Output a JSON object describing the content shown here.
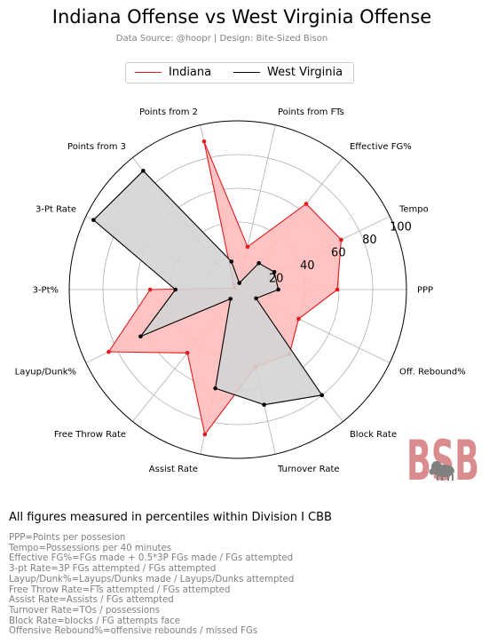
{
  "chart_data": {
    "type": "radar",
    "title": "Indiana Offense vs West Virginia Offense",
    "subtitle": "Data Source: @hoopr | Design: Bite-Sized Bison",
    "categories": [
      "PPP",
      "Tempo",
      "Effective FG%",
      "Points from FTs",
      "Points from 2",
      "Points from 3",
      "3-Pt Rate",
      "3-Pt%",
      "Layup/Dunk%",
      "Free Throw Rate",
      "Assist Rate",
      "Turnover Rate",
      "Block Rate",
      "Off. Rebound%"
    ],
    "radial_ticks": [
      "20",
      "40",
      "60",
      "80",
      "100"
    ],
    "rlim": [
      0,
      100
    ],
    "grid": true,
    "legend_position": "top-center",
    "series": [
      {
        "name": "Indiana",
        "color": "#e31a1c",
        "fill": "#ffbcbc",
        "values": [
          59,
          68,
          65,
          26,
          90,
          4,
          2,
          52,
          85,
          48,
          88,
          47,
          49,
          40
        ]
      },
      {
        "name": "West Virginia",
        "color": "#000000",
        "fill": "#d4d4d4",
        "values": [
          24,
          24,
          20,
          4,
          17,
          90,
          95,
          37,
          64,
          7,
          60,
          70,
          80,
          12
        ]
      }
    ]
  },
  "logo": {
    "text": "BSB",
    "color": "#d98b8d",
    "bison_color": "#808080"
  },
  "notes": {
    "heading": "All figures measured in percentiles within Division I CBB",
    "definitions": [
      "PPP=Points per possesion",
      "Tempo=Possessions per 40 minutes",
      "Effective FG%=FGs made + 0.5*3P FGs made / FGs attempted",
      "3-pt Rate=3P FGs attempted / FGs attempted",
      "Layup/Dunk%=Layups/Dunks made / Layups/Dunks attempted",
      "Free Throw Rate=FTs attempted / FGs attempted",
      "Assist Rate=Assists / FGs attempted",
      "Turnover Rate=TOs / possessions",
      "Block Rate=blocks / FG attempts face",
      "Offensive Rebound%=offensive rebounds / missed FGs"
    ]
  }
}
